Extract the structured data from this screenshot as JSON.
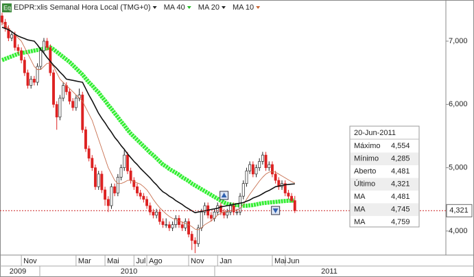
{
  "chart_data": {
    "type": "candlestick",
    "title": "EDPR:xlis Semanal Hora Local (TMG+0)",
    "categories": [
      null,
      null,
      null,
      null,
      null,
      null,
      "Nov",
      null,
      null,
      null,
      null,
      null,
      null,
      null,
      null,
      null,
      null,
      null,
      null,
      null,
      null,
      null,
      null,
      "Mar",
      null,
      null,
      null,
      null,
      null,
      null,
      null,
      null,
      "Mai",
      null,
      null,
      null,
      null,
      null,
      null,
      null,
      null,
      "Jul",
      null,
      null,
      null,
      "Ago",
      null,
      null,
      null,
      null,
      null,
      null,
      null,
      null,
      null,
      null,
      null,
      null,
      "Nov",
      null,
      null,
      null,
      null,
      null,
      null,
      null,
      null,
      "Jan",
      null,
      null,
      null,
      null,
      null,
      null,
      null,
      null,
      null,
      null,
      null,
      null,
      null,
      null,
      null,
      null,
      "Mai",
      null,
      null,
      null,
      "Jun",
      null,
      null,
      null
    ],
    "open": [
      7400,
      7300,
      7200,
      7050,
      7100,
      6900,
      6850,
      6700,
      6500,
      6300,
      6400,
      6350,
      6600,
      6850,
      7000,
      6900,
      6500,
      6000,
      5800,
      6100,
      6300,
      6200,
      6050,
      5950,
      6100,
      6150,
      5600,
      5300,
      5150,
      5000,
      4700,
      4900,
      4650,
      4500,
      4400,
      4700,
      4600,
      4850,
      5000,
      5200,
      4950,
      4800,
      4700,
      4600,
      4550,
      4500,
      4400,
      4300,
      4250,
      4300,
      4150,
      4100,
      4100,
      4050,
      4100,
      4200,
      4100,
      4050,
      4150,
      3950,
      3850,
      3800,
      4050,
      4300,
      4400,
      4250,
      4200,
      4300,
      4400,
      4300,
      4250,
      4300,
      4400,
      4300,
      4300,
      4550,
      4750,
      4950,
      5050,
      4900,
      5000,
      5100,
      5200,
      5000,
      5050,
      4900,
      4800,
      4700,
      4750,
      4600,
      4550,
      4481
    ],
    "high": [
      7450,
      7350,
      7250,
      7150,
      7150,
      6950,
      6900,
      6750,
      6550,
      6450,
      6450,
      6650,
      6900,
      7050,
      7050,
      6950,
      6550,
      6050,
      6150,
      6350,
      6350,
      6250,
      6100,
      6150,
      6250,
      6200,
      5650,
      5350,
      5200,
      5050,
      4950,
      4950,
      4700,
      4550,
      4750,
      4750,
      4900,
      5050,
      5280,
      5250,
      5000,
      4850,
      4750,
      4650,
      4600,
      4550,
      4450,
      4350,
      4350,
      4350,
      4200,
      4200,
      4150,
      4150,
      4250,
      4250,
      4150,
      4200,
      4200,
      4000,
      3900,
      4100,
      4350,
      4450,
      4450,
      4300,
      4350,
      4450,
      4450,
      4350,
      4350,
      4450,
      4450,
      4350,
      4600,
      4800,
      5000,
      5100,
      5100,
      5050,
      5150,
      5250,
      5250,
      5100,
      5100,
      4950,
      4850,
      4800,
      4800,
      4650,
      4600,
      4554
    ],
    "low": [
      7250,
      7150,
      7000,
      7000,
      6850,
      6800,
      6650,
      6450,
      6250,
      6250,
      6300,
      6300,
      6550,
      6800,
      6850,
      6450,
      5950,
      5600,
      5750,
      6050,
      6150,
      6000,
      5900,
      5900,
      6050,
      5550,
      5250,
      5100,
      4950,
      4650,
      4650,
      4600,
      4400,
      4300,
      4350,
      4550,
      4550,
      4800,
      4950,
      4900,
      4750,
      4650,
      4550,
      4500,
      4450,
      4350,
      4250,
      4200,
      4200,
      4100,
      4050,
      4050,
      4000,
      4000,
      4050,
      4050,
      4000,
      4000,
      3900,
      3700,
      3650,
      3750,
      4000,
      4250,
      4200,
      4150,
      4150,
      4250,
      4250,
      4200,
      4200,
      4250,
      4250,
      4250,
      4250,
      4500,
      4700,
      4900,
      4850,
      4850,
      4950,
      5050,
      4950,
      4950,
      4850,
      4750,
      4650,
      4650,
      4550,
      4500,
      4450,
      4285
    ],
    "close": [
      7300,
      7200,
      7050,
      7100,
      6900,
      6850,
      6700,
      6500,
      6300,
      6400,
      6350,
      6600,
      6850,
      7000,
      6900,
      6500,
      6000,
      5800,
      6100,
      6300,
      6200,
      6050,
      5950,
      6100,
      6150,
      5600,
      5300,
      5150,
      5000,
      4700,
      4900,
      4650,
      4500,
      4400,
      4700,
      4600,
      4850,
      5000,
      5200,
      4950,
      4800,
      4700,
      4600,
      4550,
      4500,
      4400,
      4300,
      4250,
      4300,
      4150,
      4100,
      4100,
      4050,
      4100,
      4200,
      4100,
      4050,
      4150,
      3950,
      3850,
      3800,
      4050,
      4300,
      4400,
      4250,
      4200,
      4300,
      4400,
      4300,
      4250,
      4300,
      4400,
      4300,
      4300,
      4550,
      4750,
      4950,
      5050,
      4900,
      5000,
      5100,
      5200,
      5000,
      5050,
      4900,
      4800,
      4700,
      4750,
      4600,
      4550,
      4481,
      4321
    ],
    "up_color": "#ffffff",
    "down_color": "#dd2222",
    "series": [
      {
        "name": "MA 40",
        "color": "#33ee33",
        "values": [
          6700,
          6720,
          6740,
          6760,
          6780,
          6800,
          6810,
          6820,
          6830,
          6840,
          6850,
          6860,
          6870,
          6880,
          6890,
          6900,
          6870,
          6830,
          6790,
          6750,
          6710,
          6670,
          6620,
          6570,
          6520,
          6470,
          6410,
          6350,
          6300,
          6240,
          6190,
          6120,
          6060,
          5990,
          5930,
          5860,
          5800,
          5730,
          5670,
          5600,
          5540,
          5490,
          5440,
          5390,
          5340,
          5290,
          5240,
          5200,
          5150,
          5100,
          5050,
          5020,
          4980,
          4950,
          4920,
          4890,
          4850,
          4820,
          4790,
          4750,
          4720,
          4690,
          4660,
          4630,
          4600,
          4570,
          4540,
          4510,
          4480,
          4450,
          4430,
          4420,
          4410,
          4410,
          4405,
          4400,
          4400,
          4405,
          4410,
          4420,
          4430,
          4440,
          4445,
          4450,
          4455,
          4460,
          4465,
          4470,
          4475,
          4478,
          4480,
          4481
        ]
      },
      {
        "name": "MA 20",
        "color": "#111111",
        "values": [
          7220,
          7200,
          7180,
          7150,
          7110,
          7080,
          7060,
          7040,
          7020,
          7010,
          7000,
          6940,
          6870,
          6810,
          6740,
          6680,
          6620,
          6570,
          6510,
          6460,
          6400,
          6390,
          6380,
          6370,
          6360,
          6350,
          6250,
          6150,
          6060,
          5960,
          5860,
          5780,
          5710,
          5630,
          5560,
          5480,
          5420,
          5350,
          5290,
          5220,
          5160,
          5100,
          5050,
          4990,
          4940,
          4890,
          4840,
          4780,
          4730,
          4670,
          4620,
          4590,
          4550,
          4520,
          4480,
          4450,
          4420,
          4380,
          4350,
          4320,
          4290,
          4300,
          4310,
          4320,
          4330,
          4340,
          4350,
          4360,
          4380,
          4390,
          4400,
          4410,
          4420,
          4430,
          4440,
          4450,
          4470,
          4490,
          4520,
          4540,
          4560,
          4590,
          4620,
          4640,
          4670,
          4700,
          4710,
          4720,
          4730,
          4735,
          4740,
          4745
        ]
      },
      {
        "name": "MA 10",
        "color": "#c87050",
        "values": [
          7300,
          7250,
          7200,
          7150,
          7100,
          7050,
          7000,
          6900,
          6800,
          6700,
          6600,
          6550,
          6550,
          6600,
          6650,
          6650,
          6600,
          6500,
          6400,
          6350,
          6300,
          6250,
          6200,
          6150,
          6100,
          6050,
          5950,
          5850,
          5750,
          5600,
          5450,
          5300,
          5150,
          5000,
          4900,
          4800,
          4750,
          4750,
          4770,
          4800,
          4800,
          4780,
          4760,
          4740,
          4700,
          4650,
          4580,
          4500,
          4430,
          4370,
          4320,
          4270,
          4230,
          4200,
          4180,
          4160,
          4140,
          4120,
          4100,
          4070,
          4030,
          4020,
          4050,
          4100,
          4130,
          4160,
          4200,
          4250,
          4280,
          4300,
          4310,
          4320,
          4330,
          4330,
          4360,
          4420,
          4500,
          4580,
          4650,
          4720,
          4790,
          4850,
          4900,
          4930,
          4940,
          4930,
          4900,
          4870,
          4840,
          4810,
          4780,
          4759
        ]
      }
    ],
    "ylim": [
      3620,
      7650
    ],
    "yticks": [
      {
        "value": 4000,
        "label": "4,000"
      },
      {
        "value": 5000,
        "label": "5,000"
      },
      {
        "value": 6000,
        "label": "6,000"
      },
      {
        "value": 7000,
        "label": "7,000"
      }
    ],
    "years": [
      "2009",
      "2010",
      "2011"
    ],
    "last_label": "4,321",
    "grid": false,
    "tooltip": {
      "date": "20-Jun-2011",
      "rows": [
        [
          "Máximo",
          "4,554"
        ],
        [
          "Mínimo",
          "4,285"
        ],
        [
          "Aberto",
          "4,481"
        ],
        [
          "Último",
          "4,321"
        ],
        [
          "MA",
          "4,481"
        ],
        [
          "MA",
          "4,745"
        ],
        [
          "MA",
          "4,759"
        ]
      ]
    }
  }
}
